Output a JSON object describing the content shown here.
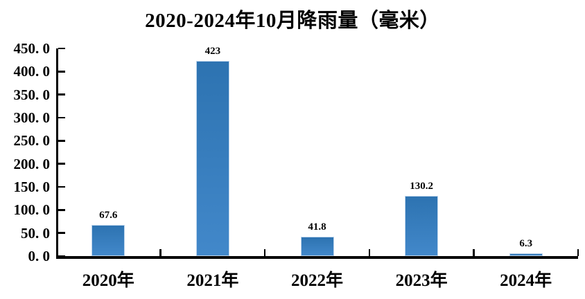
{
  "chart_data": {
    "type": "bar",
    "title": "2020-2024年10月降雨量（毫米）",
    "categories": [
      "2020年",
      "2021年",
      "2022年",
      "2023年",
      "2024年"
    ],
    "values": [
      67.6,
      423,
      41.8,
      130.2,
      6.3
    ],
    "value_labels": [
      "67.6",
      "423",
      "41.8",
      "130.2",
      "6.3"
    ],
    "xlabel": "",
    "ylabel": "",
    "ylim": [
      0,
      450
    ],
    "ytick_step": 50,
    "ytick_labels": [
      "0. 0",
      "50. 0",
      "100. 0",
      "150. 0",
      "200. 0",
      "250. 0",
      "300. 0",
      "350. 0",
      "400. 0",
      "450. 0"
    ],
    "grid": false,
    "legend_position": "none",
    "bar_color_top": "#2d73b1",
    "bar_color_bottom": "#4288ca",
    "bar_border_color": "#bcd4ec",
    "axis_color": "#000000",
    "text_color": "#000000"
  }
}
